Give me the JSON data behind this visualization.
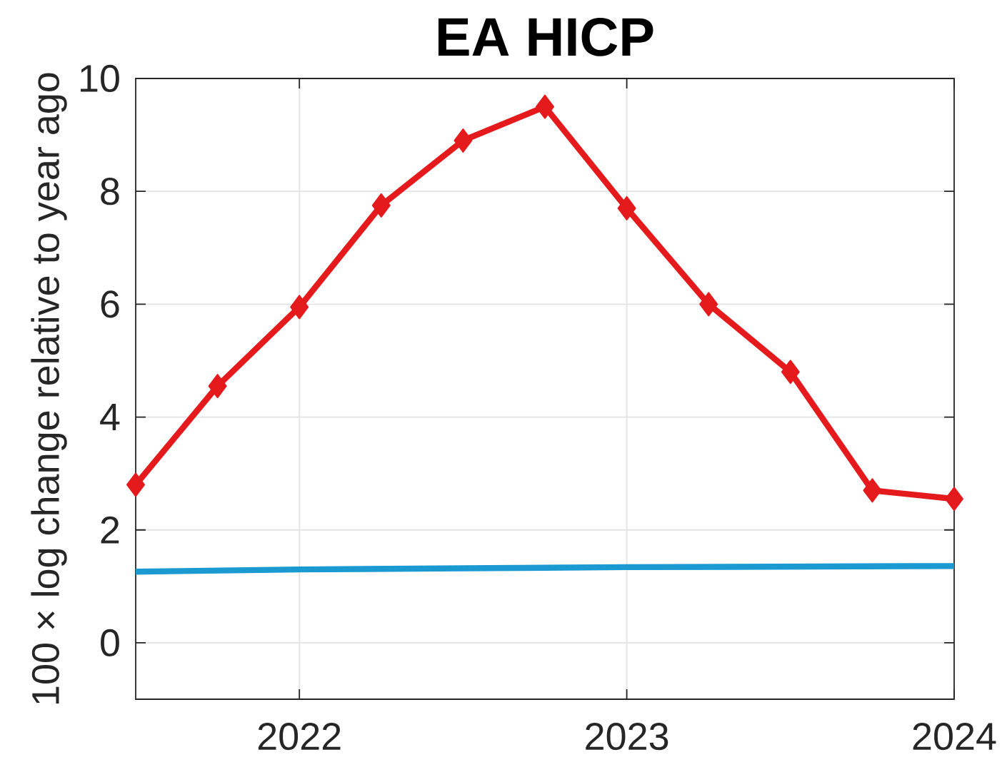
{
  "chart_data": {
    "type": "line",
    "title": "EA HICP",
    "ylabel": "100 × log change relative to year ago",
    "xlim": [
      2021.5,
      2024
    ],
    "xticks": [
      2022,
      2023,
      2024
    ],
    "ylim": [
      -1,
      10
    ],
    "yticks": [
      0,
      2,
      4,
      6,
      8,
      10
    ],
    "grid": true,
    "series": [
      {
        "color": "#e41a1c",
        "marker": "diamond",
        "x": [
          2021.5,
          2021.75,
          2022,
          2022.25,
          2022.5,
          2022.75,
          2023,
          2023.25,
          2023.5,
          2023.75,
          2024
        ],
        "values": [
          2.8,
          4.55,
          5.95,
          7.75,
          8.9,
          9.5,
          7.7,
          6.0,
          4.8,
          2.7,
          2.55
        ]
      },
      {
        "color": "#1b9ad2",
        "marker": "none",
        "x": [
          2021.5,
          2022,
          2022.5,
          2023,
          2023.5,
          2024
        ],
        "values": [
          1.26,
          1.3,
          1.32,
          1.34,
          1.35,
          1.36
        ]
      }
    ]
  }
}
